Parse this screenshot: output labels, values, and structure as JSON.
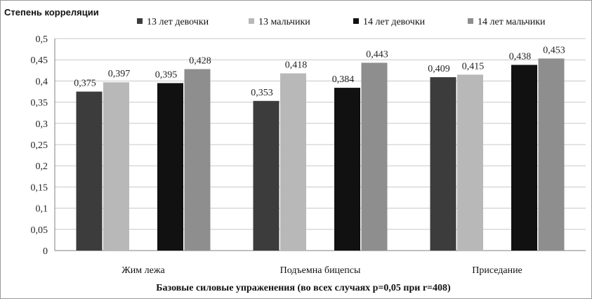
{
  "chart_data": {
    "type": "bar",
    "ylabel": "Степень корреляции",
    "xlabel": "Базовые силовые упраженения (во всех случаях p=0,05 при r=408)",
    "categories": [
      "Жим лежа",
      "Подъемна бицепсы",
      "Приседание"
    ],
    "series": [
      {
        "name": "13 лет девочки",
        "color": "#3c3c3c",
        "values": [
          0.375,
          0.353,
          0.409
        ]
      },
      {
        "name": "13 мальчики",
        "color": "#b8b8b8",
        "values": [
          0.397,
          0.418,
          0.415
        ]
      },
      {
        "name": "14 лет девочки",
        "color": "#111111",
        "values": [
          0.395,
          0.384,
          0.438
        ]
      },
      {
        "name": "14 лет мальчики",
        "color": "#8e8e8e",
        "values": [
          0.428,
          0.443,
          0.453
        ]
      }
    ],
    "ylim": [
      0,
      0.5
    ],
    "yticks": [
      0,
      0.05,
      0.1,
      0.15,
      0.2,
      0.25,
      0.3,
      0.35,
      0.4,
      0.45,
      0.5
    ],
    "ytick_labels": [
      "0",
      "0,05",
      "0,1",
      "0,15",
      "0,2",
      "0,25",
      "0,3",
      "0,35",
      "0,4",
      "0,45",
      "0,5"
    ],
    "data_labels": [
      [
        "0,375",
        "0,353",
        "0,409"
      ],
      [
        "0,397",
        "0,418",
        "0,415"
      ],
      [
        "0,395",
        "0,384",
        "0,438"
      ],
      [
        "0,428",
        "0,443",
        "0,453"
      ]
    ],
    "grid": true,
    "legend_position": "top"
  }
}
